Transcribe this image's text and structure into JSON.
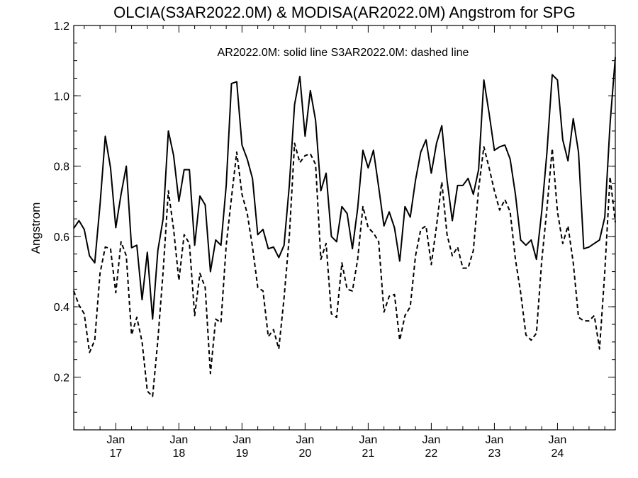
{
  "chart_data": {
    "type": "line",
    "title": "OLCIA(S3AR2022.0M) & MODISA(AR2022.0M)  Angstrom for SPG",
    "subtitle": "AR2022.0M: solid line   S3AR2022.0M: dashed line",
    "xlabel": "",
    "ylabel": "Angstrom",
    "ylim": [
      0.05,
      1.2
    ],
    "yticks": [
      "0.2",
      "0.4",
      "0.6",
      "0.8",
      "1.0",
      "1.2"
    ],
    "xticks": [
      {
        "top": "Jan",
        "bottom": "17"
      },
      {
        "top": "Jan",
        "bottom": "18"
      },
      {
        "top": "Jan",
        "bottom": "19"
      },
      {
        "top": "Jan",
        "bottom": "20"
      },
      {
        "top": "Jan",
        "bottom": "21"
      },
      {
        "top": "Jan",
        "bottom": "22"
      },
      {
        "top": "Jan",
        "bottom": "23"
      },
      {
        "top": "Jan",
        "bottom": "24"
      }
    ],
    "x_start": "2016-05",
    "x_range_months": [
      0,
      103
    ],
    "colors": {
      "line": "#000000",
      "axis": "#000000"
    },
    "series": [
      {
        "name": "AR2022.0M",
        "style": "solid",
        "points": [
          [
            0,
            0.623
          ],
          [
            1,
            0.645
          ],
          [
            2,
            0.62
          ],
          [
            3,
            0.545
          ],
          [
            4,
            0.525
          ],
          [
            5,
            0.69
          ],
          [
            6,
            0.885
          ],
          [
            7,
            0.795
          ],
          [
            8,
            0.625
          ],
          [
            9,
            0.72
          ],
          [
            10,
            0.8
          ],
          [
            11,
            0.568
          ],
          [
            12,
            0.575
          ],
          [
            13,
            0.42
          ],
          [
            14,
            0.555
          ],
          [
            15,
            0.365
          ],
          [
            16,
            0.56
          ],
          [
            17,
            0.65
          ],
          [
            18,
            0.9
          ],
          [
            19,
            0.83
          ],
          [
            20,
            0.7
          ],
          [
            21,
            0.79
          ],
          [
            22,
            0.79
          ],
          [
            23,
            0.575
          ],
          [
            24,
            0.715
          ],
          [
            25,
            0.69
          ],
          [
            26,
            0.5
          ],
          [
            27,
            0.59
          ],
          [
            28,
            0.575
          ],
          [
            29,
            0.745
          ],
          [
            30,
            1.035
          ],
          [
            31,
            1.04
          ],
          [
            32,
            0.86
          ],
          [
            33,
            0.82
          ],
          [
            34,
            0.765
          ],
          [
            35,
            0.605
          ],
          [
            36,
            0.62
          ],
          [
            37,
            0.565
          ],
          [
            38,
            0.57
          ],
          [
            39,
            0.54
          ],
          [
            40,
            0.575
          ],
          [
            41,
            0.745
          ],
          [
            42,
            0.975
          ],
          [
            43,
            1.055
          ],
          [
            44,
            0.885
          ],
          [
            45,
            1.015
          ],
          [
            46,
            0.93
          ],
          [
            47,
            0.73
          ],
          [
            48,
            0.78
          ],
          [
            49,
            0.6
          ],
          [
            50,
            0.585
          ],
          [
            51,
            0.685
          ],
          [
            52,
            0.665
          ],
          [
            53,
            0.565
          ],
          [
            54,
            0.68
          ],
          [
            55,
            0.845
          ],
          [
            56,
            0.795
          ],
          [
            57,
            0.845
          ],
          [
            58,
            0.74
          ],
          [
            59,
            0.63
          ],
          [
            60,
            0.67
          ],
          [
            61,
            0.625
          ],
          [
            62,
            0.53
          ],
          [
            63,
            0.685
          ],
          [
            64,
            0.655
          ],
          [
            65,
            0.76
          ],
          [
            66,
            0.84
          ],
          [
            67,
            0.875
          ],
          [
            68,
            0.78
          ],
          [
            69,
            0.865
          ],
          [
            70,
            0.915
          ],
          [
            71,
            0.76
          ],
          [
            72,
            0.645
          ],
          [
            73,
            0.745
          ],
          [
            74,
            0.745
          ],
          [
            75,
            0.765
          ],
          [
            76,
            0.72
          ],
          [
            77,
            0.79
          ],
          [
            78,
            1.045
          ],
          [
            79,
            0.95
          ],
          [
            80,
            0.845
          ],
          [
            81,
            0.855
          ],
          [
            82,
            0.86
          ],
          [
            83,
            0.82
          ],
          [
            84,
            0.72
          ],
          [
            85,
            0.59
          ],
          [
            86,
            0.575
          ],
          [
            87,
            0.59
          ],
          [
            88,
            0.535
          ],
          [
            89,
            0.67
          ],
          [
            90,
            0.84
          ],
          [
            91,
            1.06
          ],
          [
            92,
            1.045
          ],
          [
            93,
            0.875
          ],
          [
            94,
            0.815
          ],
          [
            95,
            0.935
          ],
          [
            96,
            0.84
          ],
          [
            97,
            0.565
          ],
          [
            98,
            0.57
          ],
          [
            99,
            0.58
          ],
          [
            100,
            0.59
          ],
          [
            101,
            0.655
          ],
          [
            102,
            0.92
          ],
          [
            103,
            1.11
          ]
        ]
      },
      {
        "name": "S3AR2022.0M",
        "style": "dashed",
        "points": [
          [
            0,
            0.445
          ],
          [
            1,
            0.405
          ],
          [
            2,
            0.38
          ],
          [
            3,
            0.27
          ],
          [
            4,
            0.305
          ],
          [
            5,
            0.495
          ],
          [
            6,
            0.57
          ],
          [
            7,
            0.565
          ],
          [
            8,
            0.44
          ],
          [
            9,
            0.585
          ],
          [
            10,
            0.545
          ],
          [
            11,
            0.32
          ],
          [
            12,
            0.37
          ],
          [
            13,
            0.3
          ],
          [
            14,
            0.16
          ],
          [
            15,
            0.145
          ],
          [
            16,
            0.305
          ],
          [
            17,
            0.5
          ],
          [
            18,
            0.73
          ],
          [
            19,
            0.62
          ],
          [
            20,
            0.475
          ],
          [
            21,
            0.605
          ],
          [
            22,
            0.58
          ],
          [
            23,
            0.375
          ],
          [
            24,
            0.495
          ],
          [
            25,
            0.455
          ],
          [
            26,
            0.21
          ],
          [
            27,
            0.365
          ],
          [
            28,
            0.355
          ],
          [
            29,
            0.575
          ],
          [
            30,
            0.71
          ],
          [
            31,
            0.84
          ],
          [
            32,
            0.72
          ],
          [
            33,
            0.665
          ],
          [
            34,
            0.57
          ],
          [
            35,
            0.455
          ],
          [
            36,
            0.445
          ],
          [
            37,
            0.315
          ],
          [
            38,
            0.335
          ],
          [
            39,
            0.28
          ],
          [
            40,
            0.425
          ],
          [
            41,
            0.6
          ],
          [
            42,
            0.865
          ],
          [
            43,
            0.81
          ],
          [
            44,
            0.83
          ],
          [
            45,
            0.835
          ],
          [
            46,
            0.805
          ],
          [
            47,
            0.535
          ],
          [
            48,
            0.58
          ],
          [
            49,
            0.38
          ],
          [
            50,
            0.37
          ],
          [
            51,
            0.525
          ],
          [
            52,
            0.45
          ],
          [
            53,
            0.445
          ],
          [
            54,
            0.535
          ],
          [
            55,
            0.685
          ],
          [
            56,
            0.625
          ],
          [
            57,
            0.61
          ],
          [
            58,
            0.585
          ],
          [
            59,
            0.385
          ],
          [
            60,
            0.43
          ],
          [
            61,
            0.435
          ],
          [
            62,
            0.305
          ],
          [
            63,
            0.375
          ],
          [
            64,
            0.4
          ],
          [
            65,
            0.545
          ],
          [
            66,
            0.62
          ],
          [
            67,
            0.63
          ],
          [
            68,
            0.52
          ],
          [
            69,
            0.63
          ],
          [
            70,
            0.755
          ],
          [
            71,
            0.605
          ],
          [
            72,
            0.545
          ],
          [
            73,
            0.57
          ],
          [
            74,
            0.51
          ],
          [
            75,
            0.51
          ],
          [
            76,
            0.56
          ],
          [
            77,
            0.735
          ],
          [
            78,
            0.855
          ],
          [
            79,
            0.795
          ],
          [
            80,
            0.73
          ],
          [
            81,
            0.675
          ],
          [
            82,
            0.705
          ],
          [
            83,
            0.67
          ],
          [
            84,
            0.535
          ],
          [
            85,
            0.44
          ],
          [
            86,
            0.32
          ],
          [
            87,
            0.305
          ],
          [
            88,
            0.325
          ],
          [
            89,
            0.53
          ],
          [
            90,
            0.68
          ],
          [
            91,
            0.85
          ],
          [
            92,
            0.67
          ],
          [
            93,
            0.58
          ],
          [
            94,
            0.63
          ],
          [
            95,
            0.525
          ],
          [
            96,
            0.37
          ],
          [
            97,
            0.36
          ],
          [
            98,
            0.36
          ],
          [
            99,
            0.375
          ],
          [
            100,
            0.28
          ],
          [
            101,
            0.5
          ],
          [
            102,
            0.77
          ],
          [
            103,
            0.64
          ]
        ]
      }
    ]
  }
}
